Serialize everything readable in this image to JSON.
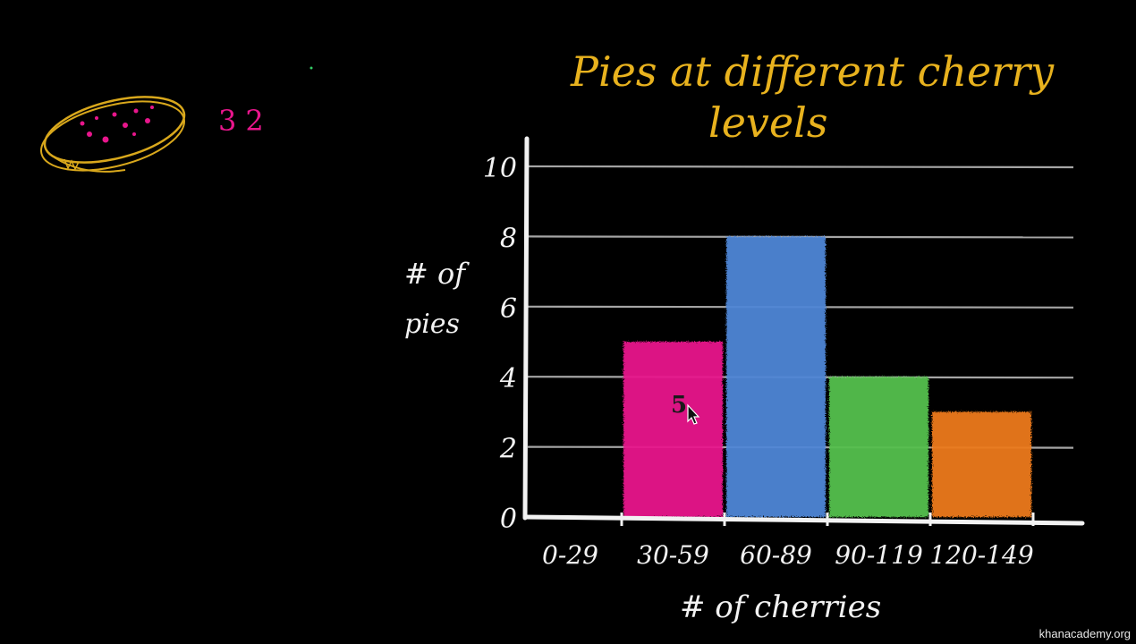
{
  "chart_data": {
    "type": "bar",
    "title": "Pies at different cherry levels",
    "title_lines": [
      "Pies at different cherry",
      "levels"
    ],
    "xlabel": "# of cherries",
    "ylabel": "# of pies",
    "ylabel_lines": [
      "# of",
      "pies"
    ],
    "categories": [
      "0-29",
      "30-59",
      "60-89",
      "90-119",
      "120-149"
    ],
    "values": [
      0,
      5,
      8,
      4,
      3
    ],
    "bar_colors": [
      "#e8168c",
      "#e8168c",
      "#4f86d6",
      "#55c04e",
      "#ec7a1c"
    ],
    "ylim": [
      0,
      10
    ],
    "yticks": [
      "0",
      "2",
      "4",
      "6",
      "8",
      "10"
    ],
    "grid": true,
    "annotations": [
      "5"
    ]
  },
  "sketch": {
    "pie_count": "32",
    "pie_color": "#d9a81c",
    "count_color": "#e8168c"
  },
  "colors": {
    "background": "#000000",
    "ink": "#f2f2f2",
    "title": "#e8b21e"
  },
  "watermark": "khanacademy.org"
}
